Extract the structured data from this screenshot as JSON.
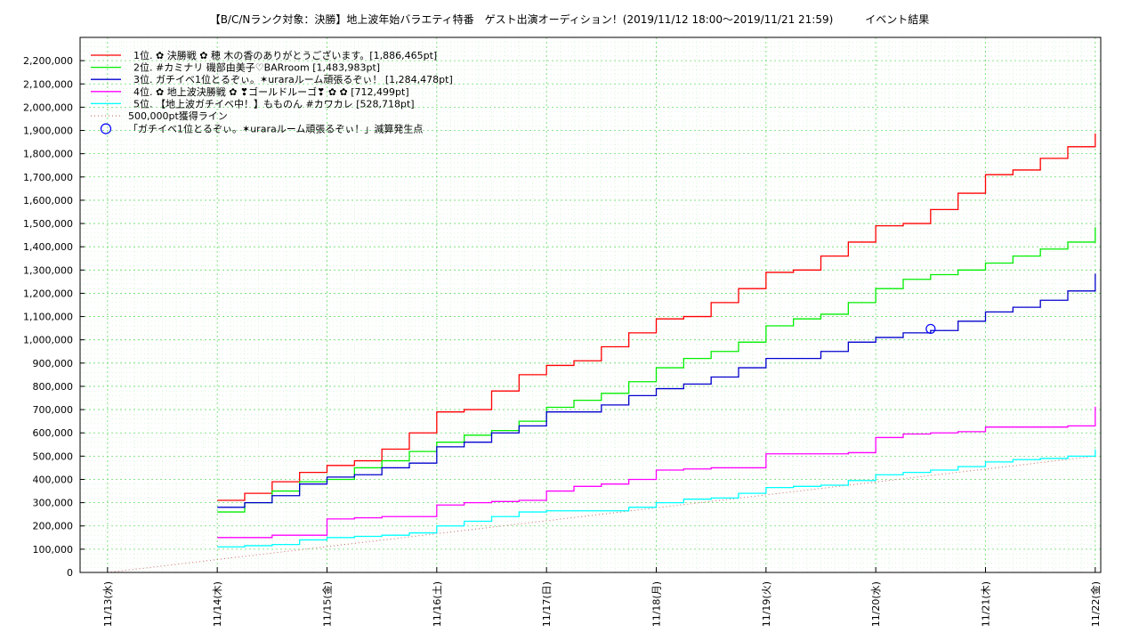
{
  "chart_data": {
    "type": "line",
    "title": "【B/C/Nランク対象：決勝】地上波年始バラエティ特番　ゲスト出演オーディション！(2019/11/12 18:00〜2019/11/21 21:59)　　　イベント結果",
    "xlabel": "",
    "ylabel": "",
    "x_ticks": [
      "11/13(水)",
      "11/14(木)",
      "11/15(金)",
      "11/16(土)",
      "11/17(日)",
      "11/18(月)",
      "11/19(火)",
      "11/20(水)",
      "11/21(木)",
      "11/22(金)"
    ],
    "x_unit": "days since 11/13 00:00",
    "xlim": [
      -0.25,
      9.05
    ],
    "ylim": [
      0,
      2300000
    ],
    "y_ticks": [
      0,
      100000,
      200000,
      300000,
      400000,
      500000,
      600000,
      700000,
      800000,
      900000,
      1000000,
      1100000,
      1200000,
      1300000,
      1400000,
      1500000,
      1600000,
      1700000,
      1800000,
      1900000,
      2000000,
      2100000,
      2200000
    ],
    "y_tick_labels": [
      "0",
      "100,000",
      "200,000",
      "300,000",
      "400,000",
      "500,000",
      "600,000",
      "700,000",
      "800,000",
      "900,000",
      "1,000,000",
      "1,100,000",
      "1,200,000",
      "1,300,000",
      "1,400,000",
      "1,500,000",
      "1,600,000",
      "1,700,000",
      "1,800,000",
      "1,900,000",
      "2,000,000",
      "2,100,000",
      "2,200,000"
    ],
    "grid": true,
    "legend_position": "top-left",
    "series": [
      {
        "name": "1位. ✿ 決勝戦 ✿ 穂 木の香のありがとうございます。[1,886,465pt]",
        "color": "#ff0000",
        "x": [
          1.0,
          1.25,
          1.5,
          1.75,
          2.0,
          2.25,
          2.5,
          2.75,
          3.0,
          3.25,
          3.5,
          3.75,
          4.0,
          4.25,
          4.5,
          4.75,
          5.0,
          5.25,
          5.5,
          5.75,
          6.0,
          6.25,
          6.5,
          6.75,
          7.0,
          7.25,
          7.5,
          7.75,
          8.0,
          8.25,
          8.5,
          8.75,
          9.0
        ],
        "y": [
          310000,
          340000,
          390000,
          430000,
          460000,
          480000,
          530000,
          600000,
          690000,
          700000,
          780000,
          850000,
          890000,
          910000,
          970000,
          1030000,
          1090000,
          1100000,
          1160000,
          1220000,
          1290000,
          1300000,
          1360000,
          1420000,
          1490000,
          1500000,
          1560000,
          1630000,
          1710000,
          1730000,
          1780000,
          1830000,
          1886465
        ]
      },
      {
        "name": "2位. #カミナリ 磯部由美子♡BARroom [1,483,983pt]",
        "color": "#00ee00",
        "x": [
          1.0,
          1.25,
          1.5,
          1.75,
          2.0,
          2.25,
          2.5,
          2.75,
          3.0,
          3.25,
          3.5,
          3.75,
          4.0,
          4.25,
          4.5,
          4.75,
          5.0,
          5.25,
          5.5,
          5.75,
          6.0,
          6.25,
          6.5,
          6.75,
          7.0,
          7.25,
          7.5,
          7.75,
          8.0,
          8.25,
          8.5,
          8.75,
          9.0
        ],
        "y": [
          260000,
          300000,
          350000,
          390000,
          400000,
          450000,
          480000,
          520000,
          560000,
          590000,
          610000,
          650000,
          710000,
          740000,
          770000,
          820000,
          880000,
          920000,
          950000,
          990000,
          1060000,
          1090000,
          1110000,
          1160000,
          1220000,
          1260000,
          1280000,
          1300000,
          1330000,
          1360000,
          1390000,
          1420000,
          1483983
        ]
      },
      {
        "name": "3位. ガチイベ1位とるぞぃ。✶uraraルーム頑張るぞぃ！ [1,284,478pt]",
        "color": "#0000cc",
        "x": [
          1.0,
          1.25,
          1.5,
          1.75,
          2.0,
          2.25,
          2.5,
          2.75,
          3.0,
          3.25,
          3.5,
          3.75,
          4.0,
          4.25,
          4.5,
          4.75,
          5.0,
          5.25,
          5.5,
          5.75,
          6.0,
          6.25,
          6.5,
          6.75,
          7.0,
          7.25,
          7.5,
          7.75,
          8.0,
          8.25,
          8.5,
          8.75,
          9.0
        ],
        "y": [
          280000,
          300000,
          330000,
          380000,
          410000,
          420000,
          450000,
          470000,
          540000,
          560000,
          600000,
          630000,
          690000,
          690000,
          720000,
          760000,
          790000,
          810000,
          840000,
          880000,
          920000,
          920000,
          950000,
          990000,
          1010000,
          1030000,
          1040000,
          1080000,
          1120000,
          1140000,
          1170000,
          1210000,
          1284478
        ]
      },
      {
        "name": "4位. ✿ 地上波決勝戦 ✿ ❣ゴールドルーゴ❣ ✿ ✿ [712,499pt]",
        "color": "#ff00ff",
        "x": [
          1.0,
          1.25,
          1.5,
          1.75,
          2.0,
          2.25,
          2.5,
          2.75,
          3.0,
          3.25,
          3.5,
          3.75,
          4.0,
          4.25,
          4.5,
          4.75,
          5.0,
          5.25,
          5.5,
          5.75,
          6.0,
          6.25,
          6.5,
          6.75,
          7.0,
          7.25,
          7.5,
          7.75,
          8.0,
          8.25,
          8.5,
          8.75,
          9.0
        ],
        "y": [
          150000,
          150000,
          160000,
          160000,
          230000,
          235000,
          240000,
          240000,
          290000,
          300000,
          305000,
          310000,
          350000,
          370000,
          380000,
          400000,
          440000,
          445000,
          450000,
          450000,
          510000,
          510000,
          510000,
          515000,
          580000,
          595000,
          600000,
          605000,
          625000,
          625000,
          625000,
          630000,
          712499
        ]
      },
      {
        "name": "5位. 【地上波ガチイベ中！】ももの‌ん #カワカレ [528,718pt]",
        "color": "#00ffff",
        "x": [
          1.0,
          1.25,
          1.5,
          1.75,
          2.0,
          2.25,
          2.5,
          2.75,
          3.0,
          3.25,
          3.5,
          3.75,
          4.0,
          4.25,
          4.5,
          4.75,
          5.0,
          5.25,
          5.5,
          5.75,
          6.0,
          6.25,
          6.5,
          6.75,
          7.0,
          7.25,
          7.5,
          7.75,
          8.0,
          8.25,
          8.5,
          8.75,
          9.0
        ],
        "y": [
          110000,
          115000,
          120000,
          140000,
          150000,
          155000,
          160000,
          170000,
          200000,
          220000,
          240000,
          260000,
          265000,
          265000,
          265000,
          280000,
          300000,
          315000,
          320000,
          340000,
          365000,
          370000,
          375000,
          395000,
          420000,
          430000,
          440000,
          455000,
          475000,
          485000,
          490000,
          500000,
          528718
        ]
      }
    ],
    "reference_line": {
      "name": "500,000pt獲得ライン",
      "color": "#cc6666",
      "x": [
        0.0,
        9.0
      ],
      "y": [
        0,
        500000
      ]
    },
    "marker": {
      "name": "「ガチイベ1位とるぞぃ。✶uraraルーム頑張るぞぃ！」減算発生点",
      "color": "#0000ff",
      "x": 7.5,
      "y": 1047000
    }
  }
}
